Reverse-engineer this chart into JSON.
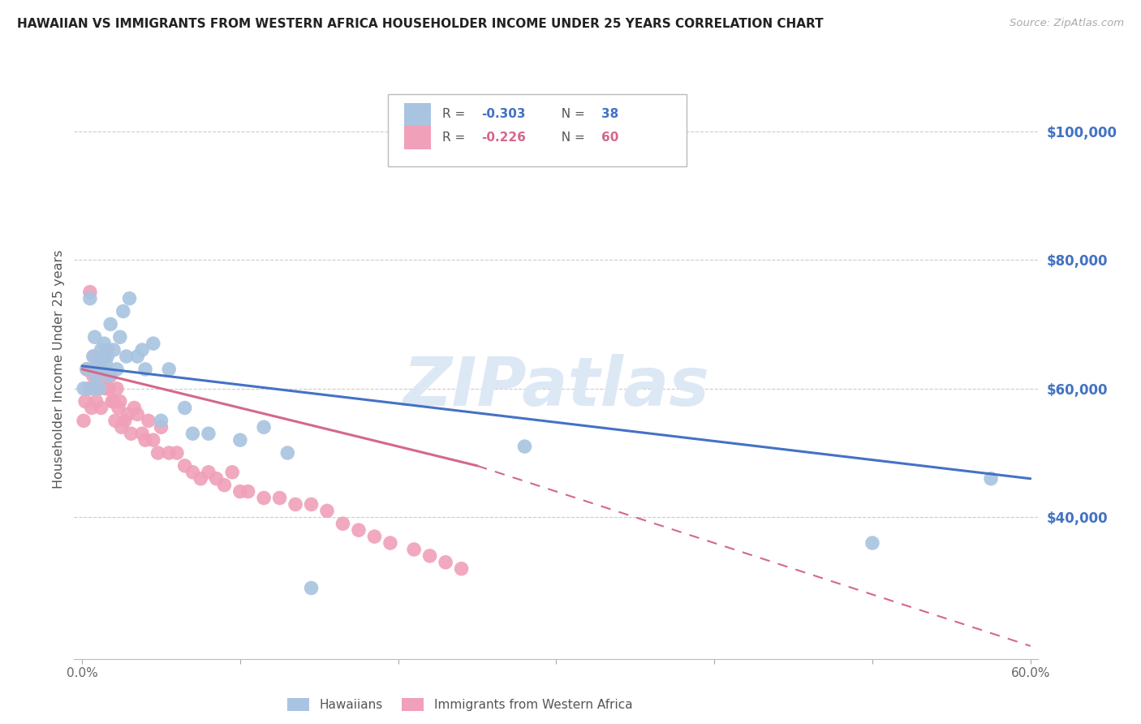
{
  "title": "HAWAIIAN VS IMMIGRANTS FROM WESTERN AFRICA HOUSEHOLDER INCOME UNDER 25 YEARS CORRELATION CHART",
  "source": "Source: ZipAtlas.com",
  "ylabel": "Householder Income Under 25 years",
  "xlim": [
    -0.005,
    0.605
  ],
  "ylim": [
    18000,
    108000
  ],
  "yticks": [
    40000,
    60000,
    80000,
    100000
  ],
  "ytick_labels": [
    "$40,000",
    "$60,000",
    "$80,000",
    "$100,000"
  ],
  "hawaiian_color": "#a8c4e0",
  "immigrant_color": "#f0a0b8",
  "line_color_hawaiian": "#4472c4",
  "line_color_immigrant": "#d4688a",
  "watermark": "ZIPatlas",
  "watermark_color": "#dde8f5",
  "title_color": "#222222",
  "right_axis_color": "#4472c4",
  "hawaiian_x": [
    0.001,
    0.003,
    0.005,
    0.006,
    0.007,
    0.008,
    0.009,
    0.01,
    0.011,
    0.012,
    0.013,
    0.014,
    0.015,
    0.016,
    0.017,
    0.018,
    0.02,
    0.022,
    0.024,
    0.026,
    0.028,
    0.03,
    0.035,
    0.038,
    0.04,
    0.045,
    0.05,
    0.055,
    0.065,
    0.07,
    0.08,
    0.1,
    0.115,
    0.13,
    0.145,
    0.28,
    0.5,
    0.575
  ],
  "hawaiian_y": [
    60000,
    63000,
    74000,
    60000,
    65000,
    68000,
    62000,
    64000,
    60000,
    66000,
    63000,
    67000,
    64000,
    65000,
    62000,
    70000,
    66000,
    63000,
    68000,
    72000,
    65000,
    74000,
    65000,
    66000,
    63000,
    67000,
    55000,
    63000,
    57000,
    53000,
    53000,
    52000,
    54000,
    50000,
    29000,
    51000,
    36000,
    46000
  ],
  "immigrant_x": [
    0.001,
    0.002,
    0.003,
    0.004,
    0.005,
    0.006,
    0.007,
    0.008,
    0.009,
    0.01,
    0.011,
    0.012,
    0.013,
    0.014,
    0.015,
    0.016,
    0.017,
    0.018,
    0.019,
    0.02,
    0.021,
    0.022,
    0.023,
    0.024,
    0.025,
    0.027,
    0.029,
    0.031,
    0.033,
    0.035,
    0.038,
    0.04,
    0.042,
    0.045,
    0.048,
    0.05,
    0.055,
    0.06,
    0.065,
    0.07,
    0.075,
    0.08,
    0.085,
    0.09,
    0.095,
    0.1,
    0.105,
    0.115,
    0.125,
    0.135,
    0.145,
    0.155,
    0.165,
    0.175,
    0.185,
    0.195,
    0.21,
    0.22,
    0.23,
    0.24
  ],
  "immigrant_y": [
    55000,
    58000,
    63000,
    60000,
    75000,
    57000,
    62000,
    65000,
    58000,
    60000,
    63000,
    57000,
    62000,
    65000,
    60000,
    66000,
    60000,
    62000,
    58000,
    58000,
    55000,
    60000,
    57000,
    58000,
    54000,
    55000,
    56000,
    53000,
    57000,
    56000,
    53000,
    52000,
    55000,
    52000,
    50000,
    54000,
    50000,
    50000,
    48000,
    47000,
    46000,
    47000,
    46000,
    45000,
    47000,
    44000,
    44000,
    43000,
    43000,
    42000,
    42000,
    41000,
    39000,
    38000,
    37000,
    36000,
    35000,
    34000,
    33000,
    32000
  ],
  "hawaiian_line_x": [
    0.0,
    0.6
  ],
  "hawaiian_line_y": [
    63500,
    46000
  ],
  "immigrant_line_x0": 0.0,
  "immigrant_line_x1": 0.25,
  "immigrant_line_x2": 0.6,
  "immigrant_line_y0": 63000,
  "immigrant_line_y1": 48000,
  "immigrant_line_y2": 20000
}
